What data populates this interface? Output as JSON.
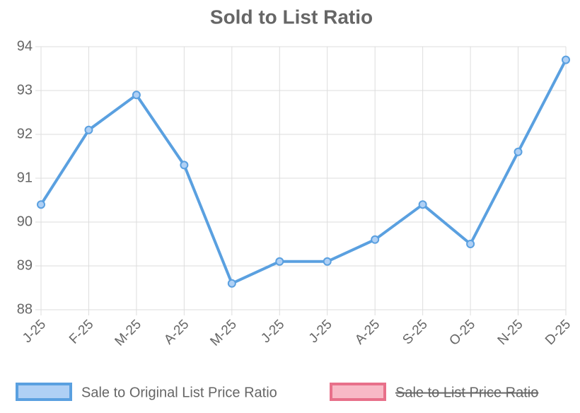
{
  "chart_data": {
    "type": "line",
    "title": "Sold to List Ratio",
    "categories": [
      "J-25",
      "F-25",
      "M-25",
      "A-25",
      "M-25",
      "J-25",
      "J-25",
      "A-25",
      "S-25",
      "O-25",
      "N-25",
      "D-25"
    ],
    "series": [
      {
        "name": "Sale to Original List Price Ratio",
        "color": "#5aa0e0",
        "fill": "#afd0f5",
        "values": [
          90.4,
          92.1,
          92.9,
          91.3,
          88.6,
          89.1,
          89.1,
          89.6,
          90.4,
          89.5,
          91.6,
          93.7
        ]
      },
      {
        "name": "Sale to List Price Ratio",
        "color": "#e8708a",
        "fill": "#f8b9c6",
        "hidden": true,
        "values": [
          null,
          null,
          null,
          null,
          null,
          null,
          null,
          null,
          null,
          null,
          null,
          null
        ]
      }
    ],
    "ylim": [
      88,
      94
    ],
    "yticks": [
      88,
      89,
      90,
      91,
      92,
      93,
      94
    ],
    "grid": true
  }
}
